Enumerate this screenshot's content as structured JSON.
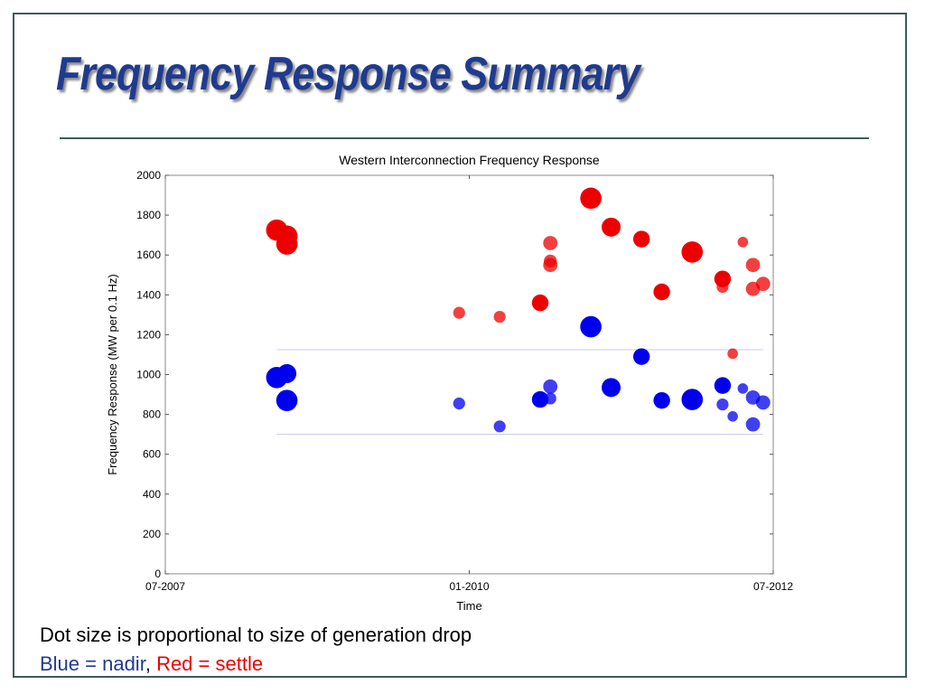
{
  "slide": {
    "title": "Frequency Response Summary",
    "caption_line1": "Dot size is proportional to size of generation drop",
    "legend_blue": "Blue = nadir",
    "legend_sep": ",",
    "legend_red": "Red = settle"
  },
  "colors": {
    "title": "#1f3b8f",
    "nadir": "#0000ee",
    "settle": "#ee0000",
    "frame": "#3f5a5a"
  },
  "chart_data": {
    "type": "scatter",
    "title": "Western Interconnection Frequency Response",
    "xlabel": "Time",
    "ylabel": "Frequency Response (MW per 0.1 Hz)",
    "x_ticks": [
      "07-2007",
      "01-2010",
      "07-2012"
    ],
    "x_range": [
      "2007-07",
      "2012-07"
    ],
    "ylim": [
      0,
      2000
    ],
    "y_ticks": [
      0,
      200,
      400,
      600,
      800,
      1000,
      1200,
      1400,
      1600,
      1800,
      2000
    ],
    "reference_lines": [
      {
        "y": 1125,
        "x_from": "2008-06",
        "x_to": "2012-06"
      },
      {
        "y": 700,
        "x_from": "2008-06",
        "x_to": "2012-06"
      }
    ],
    "series": [
      {
        "color": "#ee0000",
        "points": [
          {
            "x": "2008-06",
            "y": 1725,
            "size": 3
          },
          {
            "x": "2008-07",
            "y": 1695,
            "size": 3
          },
          {
            "x": "2008-07",
            "y": 1655,
            "size": 3
          },
          {
            "x": "2009-12",
            "y": 1310,
            "size": 1
          },
          {
            "x": "2010-04",
            "y": 1290,
            "size": 1
          },
          {
            "x": "2010-08",
            "y": 1360,
            "size": 2
          },
          {
            "x": "2010-09",
            "y": 1660,
            "size": 1.5
          },
          {
            "x": "2010-09",
            "y": 1570,
            "size": 1.2
          },
          {
            "x": "2010-09",
            "y": 1550,
            "size": 1.5
          },
          {
            "x": "2011-01",
            "y": 1885,
            "size": 3
          },
          {
            "x": "2011-03",
            "y": 1740,
            "size": 2.5
          },
          {
            "x": "2011-06",
            "y": 1680,
            "size": 2
          },
          {
            "x": "2011-08",
            "y": 1415,
            "size": 2
          },
          {
            "x": "2011-11",
            "y": 1615,
            "size": 3
          },
          {
            "x": "2012-02",
            "y": 1480,
            "size": 2
          },
          {
            "x": "2012-02",
            "y": 1440,
            "size": 1
          },
          {
            "x": "2012-03",
            "y": 1105,
            "size": 0.7
          },
          {
            "x": "2012-04",
            "y": 1665,
            "size": 0.7
          },
          {
            "x": "2012-05",
            "y": 1430,
            "size": 1.5
          },
          {
            "x": "2012-05",
            "y": 1550,
            "size": 1.5
          },
          {
            "x": "2012-06",
            "y": 1455,
            "size": 1.5
          }
        ]
      },
      {
        "color": "#0000ee",
        "points": [
          {
            "x": "2008-06",
            "y": 985,
            "size": 3
          },
          {
            "x": "2008-07",
            "y": 1005,
            "size": 2.5
          },
          {
            "x": "2008-07",
            "y": 870,
            "size": 3
          },
          {
            "x": "2009-12",
            "y": 855,
            "size": 1
          },
          {
            "x": "2010-04",
            "y": 740,
            "size": 1
          },
          {
            "x": "2010-08",
            "y": 875,
            "size": 2
          },
          {
            "x": "2010-09",
            "y": 940,
            "size": 1.5
          },
          {
            "x": "2010-09",
            "y": 880,
            "size": 1
          },
          {
            "x": "2011-01",
            "y": 1240,
            "size": 3
          },
          {
            "x": "2011-03",
            "y": 935,
            "size": 2.5
          },
          {
            "x": "2011-06",
            "y": 1090,
            "size": 2
          },
          {
            "x": "2011-08",
            "y": 870,
            "size": 2
          },
          {
            "x": "2011-11",
            "y": 875,
            "size": 3
          },
          {
            "x": "2012-02",
            "y": 945,
            "size": 2
          },
          {
            "x": "2012-02",
            "y": 850,
            "size": 1
          },
          {
            "x": "2012-03",
            "y": 790,
            "size": 0.7
          },
          {
            "x": "2012-04",
            "y": 930,
            "size": 0.7
          },
          {
            "x": "2012-05",
            "y": 750,
            "size": 1.5
          },
          {
            "x": "2012-05",
            "y": 885,
            "size": 1.5
          },
          {
            "x": "2012-06",
            "y": 860,
            "size": 1.5
          }
        ]
      }
    ]
  }
}
